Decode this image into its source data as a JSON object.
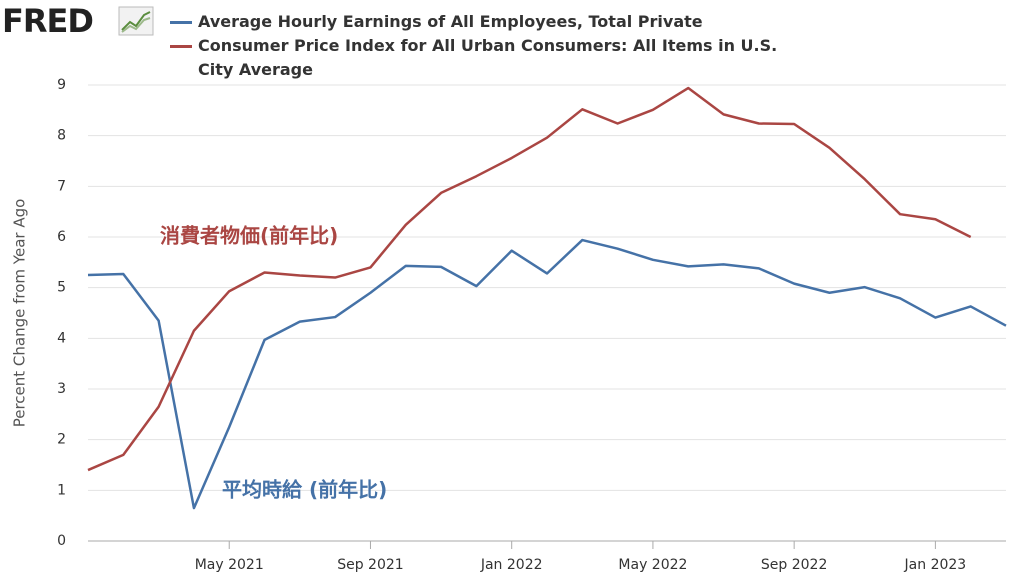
{
  "logo": "FRED",
  "chart_data": {
    "type": "line",
    "y_label": "Percent Change from Year Ago",
    "categories": [
      null,
      null,
      null,
      null,
      "May 2021",
      null,
      null,
      null,
      "Sep 2021",
      null,
      null,
      null,
      "Jan 2022",
      null,
      null,
      null,
      "May 2022",
      null,
      null,
      null,
      "Sep 2022",
      null,
      null,
      null,
      "Jan 2023",
      null,
      null
    ],
    "series": [
      {
        "name": "Average Hourly Earnings of All Employees, Total Private",
        "color": "#4572a7",
        "values": [
          5.25,
          5.27,
          4.35,
          0.65,
          2.25,
          3.97,
          4.33,
          4.42,
          4.9,
          5.43,
          5.41,
          5.03,
          5.73,
          5.28,
          5.94,
          5.77,
          5.55,
          5.42,
          5.46,
          5.38,
          5.08,
          4.9,
          5.01,
          4.79,
          4.41,
          4.63,
          4.25
        ]
      },
      {
        "name": "Consumer Price Index for All Urban Consumers: All Items in U.S. City Average",
        "color": "#aa4643",
        "values": [
          1.4,
          1.7,
          2.65,
          4.15,
          4.93,
          5.3,
          5.24,
          5.2,
          5.4,
          6.24,
          6.87,
          7.2,
          7.56,
          7.96,
          8.52,
          8.24,
          8.51,
          8.94,
          8.42,
          8.24,
          8.23,
          7.76,
          7.14,
          6.45,
          6.35,
          6.0,
          null
        ]
      }
    ],
    "annotations": [
      "消費者物価(前年比)",
      "平均時給 (前年比)"
    ],
    "ylim": [
      0,
      9
    ],
    "yticks": [
      0,
      1,
      2,
      3,
      4,
      5,
      6,
      7,
      8,
      9
    ],
    "grid": true
  }
}
